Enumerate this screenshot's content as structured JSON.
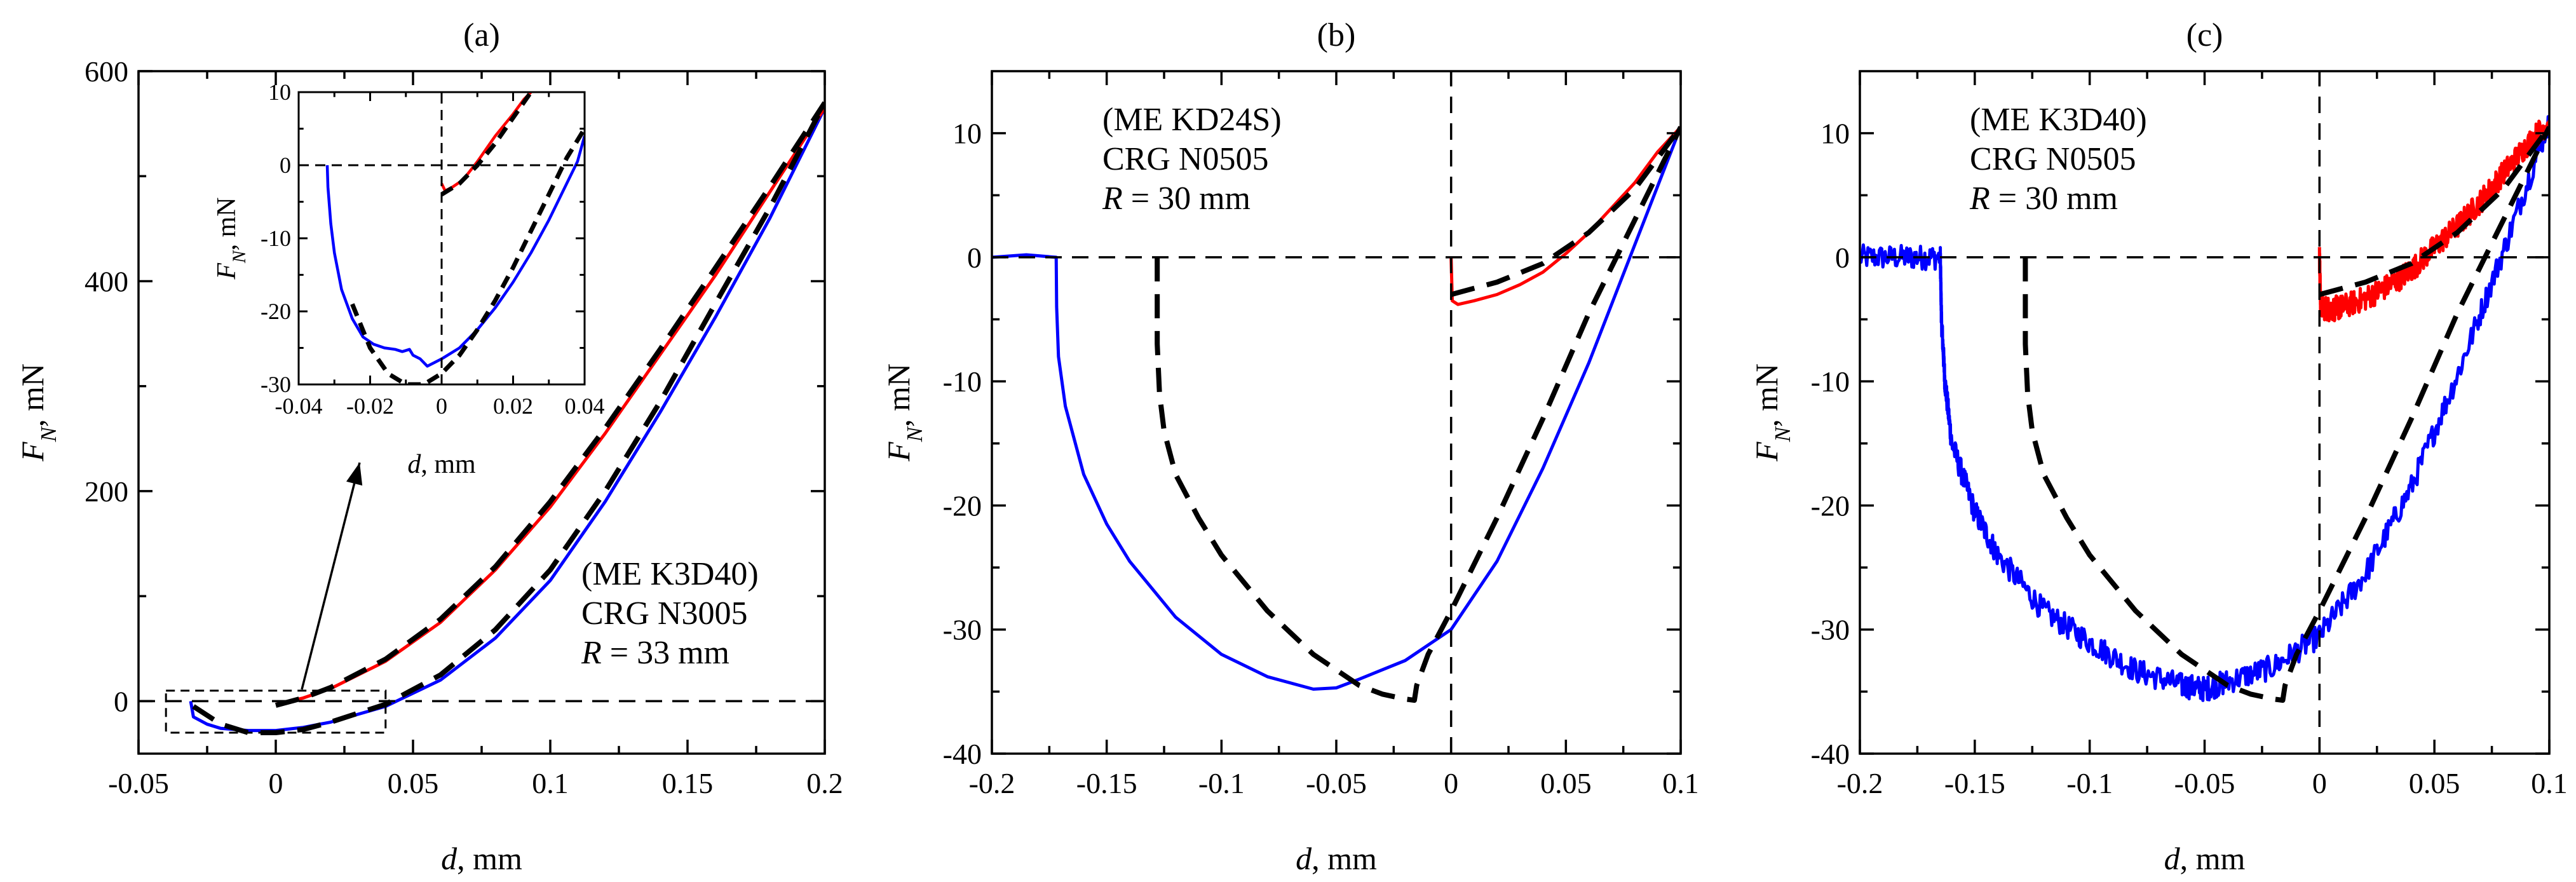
{
  "colors": {
    "loading": "#0000ff",
    "unloading": "#ff0000",
    "model": "#000000"
  },
  "chart_data": [
    {
      "id": "a",
      "type": "line",
      "panel_label": "(a)",
      "xlabel": "d, mm",
      "ylabel": "F_N, mN",
      "xlim": [
        -0.05,
        0.2
      ],
      "ylim": [
        -50,
        600
      ],
      "xticks": [
        -0.05,
        0,
        0.05,
        0.1,
        0.15,
        0.2
      ],
      "xtick_labels": [
        "-0.05",
        "0",
        "0.05",
        "0.1",
        "0.15",
        "0.2"
      ],
      "yticks": [
        0,
        200,
        400,
        600
      ],
      "ytick_labels": [
        "0",
        "200",
        "400",
        "600"
      ],
      "annotation": [
        "(ME K3D40)",
        "CRG N3005",
        "R = 33 mm"
      ],
      "series": [
        {
          "name": "loading (measured)",
          "color": "blue",
          "dash": false,
          "x": [
            -0.031,
            -0.03,
            -0.025,
            -0.02,
            -0.01,
            0,
            0.01,
            0.02,
            0.04,
            0.06,
            0.08,
            0.1,
            0.12,
            0.14,
            0.16,
            0.18,
            0.2
          ],
          "y": [
            0,
            -15,
            -22,
            -26,
            -28,
            -28,
            -25,
            -20,
            -5,
            20,
            60,
            115,
            190,
            275,
            365,
            460,
            565
          ]
        },
        {
          "name": "unloading (measured)",
          "color": "red",
          "dash": false,
          "x": [
            0,
            0.01,
            0.02,
            0.04,
            0.06,
            0.08,
            0.1,
            0.12,
            0.14,
            0.16,
            0.18,
            0.2
          ],
          "y": [
            -3,
            3,
            12,
            38,
            75,
            125,
            185,
            255,
            330,
            405,
            485,
            565
          ]
        },
        {
          "name": "model loading",
          "color": "black",
          "dash": true,
          "x": [
            -0.03,
            -0.02,
            -0.01,
            0,
            0.01,
            0.02,
            0.04,
            0.06,
            0.08,
            0.1,
            0.12,
            0.14,
            0.16,
            0.18,
            0.2
          ],
          "y": [
            -5,
            -22,
            -30,
            -30,
            -27,
            -20,
            -3,
            25,
            68,
            125,
            200,
            285,
            378,
            470,
            570
          ]
        },
        {
          "name": "model unloading",
          "color": "black",
          "dash": true,
          "x": [
            0,
            0.01,
            0.02,
            0.04,
            0.06,
            0.08,
            0.1,
            0.12,
            0.14,
            0.16,
            0.18,
            0.2
          ],
          "y": [
            -4,
            3,
            13,
            40,
            78,
            128,
            190,
            260,
            335,
            412,
            490,
            570
          ]
        },
        {
          "name": "zero line",
          "color": "black",
          "dash": true,
          "thin": true,
          "x": [
            -0.05,
            0.2
          ],
          "y": [
            0,
            0
          ]
        }
      ],
      "inset": {
        "xlabel": "d, mm",
        "ylabel": "F_N, mN",
        "xlim": [
          -0.04,
          0.04
        ],
        "ylim": [
          -30,
          10
        ],
        "xticks": [
          -0.04,
          -0.02,
          0,
          0.02,
          0.04
        ],
        "xtick_labels": [
          "-0.04",
          "-0.02",
          "0",
          "0.02",
          "0.04"
        ],
        "yticks": [
          -30,
          -20,
          -10,
          0,
          10
        ],
        "ytick_labels": [
          "-30",
          "-20",
          "-10",
          "0",
          "10"
        ],
        "series": [
          {
            "name": "loading (measured)",
            "color": "blue",
            "dash": false,
            "x": [
              -0.032,
              -0.0318,
              -0.031,
              -0.03,
              -0.028,
              -0.025,
              -0.022,
              -0.019,
              -0.016,
              -0.013,
              -0.011,
              -0.009,
              -0.008,
              -0.006,
              -0.004,
              -0.002,
              0,
              0.005,
              0.01,
              0.015,
              0.02,
              0.025,
              0.03,
              0.035,
              0.038,
              0.04
            ],
            "y": [
              0,
              -3,
              -8,
              -12,
              -17,
              -21,
              -23.5,
              -24.5,
              -25,
              -25.2,
              -25.5,
              -25.2,
              -26,
              -26.5,
              -27.5,
              -27,
              -26.5,
              -25,
              -22.5,
              -19.5,
              -16,
              -12,
              -7.5,
              -2.5,
              0.5,
              4
            ]
          },
          {
            "name": "unloading (measured)",
            "color": "red",
            "dash": false,
            "x": [
              0,
              0.001,
              0.003,
              0.006,
              0.01,
              0.015,
              0.02,
              0.023,
              0.025
            ],
            "y": [
              -2.5,
              -3.5,
              -3,
              -2,
              0.5,
              4,
              7,
              9,
              10
            ]
          },
          {
            "name": "model loading",
            "color": "black",
            "dash": true,
            "x": [
              -0.025,
              -0.02,
              -0.015,
              -0.01,
              -0.005,
              0,
              0.005,
              0.01,
              0.015,
              0.02,
              0.025,
              0.03,
              0.035,
              0.04
            ],
            "y": [
              -19,
              -25,
              -28.5,
              -30,
              -30,
              -28.5,
              -26,
              -22.5,
              -18.5,
              -14,
              -9,
              -4,
              1,
              5
            ]
          },
          {
            "name": "model unloading",
            "color": "black",
            "dash": true,
            "x": [
              0,
              0.005,
              0.01,
              0.015,
              0.02,
              0.025
            ],
            "y": [
              -4,
              -2.5,
              0,
              3,
              6.5,
              10
            ]
          },
          {
            "name": "zero line",
            "color": "black",
            "dash": true,
            "thin": true,
            "x": [
              -0.04,
              0.04
            ],
            "y": [
              0,
              0
            ]
          },
          {
            "name": "x=0 line",
            "color": "black",
            "dash": true,
            "thin": true,
            "x": [
              0,
              0
            ],
            "y": [
              -30,
              10
            ]
          }
        ]
      }
    },
    {
      "id": "b",
      "type": "line",
      "panel_label": "(b)",
      "xlabel": "d, mm",
      "ylabel": "F_N, mN",
      "xlim": [
        -0.2,
        0.1
      ],
      "ylim": [
        -40,
        15
      ],
      "xticks": [
        -0.2,
        -0.15,
        -0.1,
        -0.05,
        0,
        0.05,
        0.1
      ],
      "xtick_labels": [
        "-0.2",
        "-0.15",
        "-0.1",
        "-0.05",
        "0",
        "0.05",
        "0.1"
      ],
      "yticks": [
        -40,
        -30,
        -20,
        -10,
        0,
        10
      ],
      "ytick_labels": [
        "-40",
        "-30",
        "-20",
        "-10",
        "0",
        "10"
      ],
      "annotation": [
        "(ME KD24S)",
        "CRG N0505",
        "R = 30 mm"
      ],
      "series": [
        {
          "name": "loading (measured)",
          "color": "blue",
          "dash": false,
          "x": [
            -0.2,
            -0.185,
            -0.172,
            -0.1718,
            -0.171,
            -0.168,
            -0.16,
            -0.15,
            -0.14,
            -0.12,
            -0.1,
            -0.08,
            -0.06,
            -0.05,
            -0.04,
            -0.02,
            0,
            0.02,
            0.04,
            0.06,
            0.08,
            0.1
          ],
          "y": [
            0,
            0.2,
            0,
            -4,
            -8,
            -12,
            -17.5,
            -21.5,
            -24.5,
            -29,
            -32,
            -33.8,
            -34.8,
            -34.7,
            -34,
            -32.5,
            -30,
            -24.5,
            -17,
            -8.5,
            1,
            10.5
          ]
        },
        {
          "name": "unloading (measured)",
          "color": "red",
          "dash": false,
          "x": [
            0,
            0.0005,
            0.003,
            0.01,
            0.02,
            0.03,
            0.04,
            0.05,
            0.06,
            0.07,
            0.08,
            0.09,
            0.1
          ],
          "y": [
            0,
            -3.5,
            -3.8,
            -3.5,
            -3,
            -2.2,
            -1.2,
            0.3,
            2,
            4,
            6,
            8.5,
            10.5
          ]
        },
        {
          "name": "model loading",
          "color": "black",
          "dash": true,
          "x": [
            -0.128,
            -0.128,
            -0.127,
            -0.125,
            -0.12,
            -0.11,
            -0.1,
            -0.08,
            -0.06,
            -0.04,
            -0.03,
            -0.02,
            -0.016,
            -0.015,
            -0.01,
            0,
            0.02,
            0.04,
            0.06,
            0.08,
            0.1
          ],
          "y": [
            0,
            -7,
            -11,
            -14,
            -17.5,
            -21,
            -24,
            -28.5,
            -32,
            -34.5,
            -35.2,
            -35.6,
            -35.7,
            -34.5,
            -32,
            -28.5,
            -21,
            -13,
            -4.5,
            3,
            10.5
          ]
        },
        {
          "name": "model unloading",
          "color": "black",
          "dash": true,
          "x": [
            0,
            0.01,
            0.02,
            0.04,
            0.06,
            0.08,
            0.1
          ],
          "y": [
            -3,
            -2.5,
            -2,
            -0.5,
            2,
            5.5,
            10.5
          ]
        },
        {
          "name": "zero line",
          "color": "black",
          "dash": true,
          "thin": true,
          "x": [
            -0.2,
            0.1
          ],
          "y": [
            0,
            0
          ]
        },
        {
          "name": "x=0 line",
          "color": "black",
          "dash": true,
          "thin": true,
          "x": [
            0,
            0
          ],
          "y": [
            -40,
            15
          ]
        }
      ]
    },
    {
      "id": "c",
      "type": "line",
      "panel_label": "(c)",
      "xlabel": "d, mm",
      "ylabel": "F_N, mN",
      "xlim": [
        -0.2,
        0.1
      ],
      "ylim": [
        -40,
        15
      ],
      "xticks": [
        -0.2,
        -0.15,
        -0.1,
        -0.05,
        0,
        0.05,
        0.1
      ],
      "xtick_labels": [
        "-0.2",
        "-0.15",
        "-0.1",
        "-0.05",
        "0",
        "0.05",
        "0.1"
      ],
      "yticks": [
        -40,
        -30,
        -20,
        -10,
        0,
        10
      ],
      "ytick_labels": [
        "-40",
        "-30",
        "-20",
        "-10",
        "0",
        "10"
      ],
      "annotation": [
        "(ME K3D40)",
        "CRG N0505",
        "R = 30 mm"
      ],
      "series": [
        {
          "name": "loading (measured)",
          "color": "blue",
          "dash": false,
          "noise": 1.0,
          "x": [
            -0.2,
            -0.18,
            -0.165,
            -0.1645,
            -0.163,
            -0.16,
            -0.15,
            -0.14,
            -0.12,
            -0.1,
            -0.08,
            -0.06,
            -0.05,
            -0.04,
            -0.02,
            0,
            0.02,
            0.04,
            0.06,
            0.08,
            0.1
          ],
          "y": [
            0,
            0,
            0,
            -5,
            -10,
            -15,
            -20.5,
            -24,
            -28.5,
            -31,
            -33.3,
            -34.5,
            -34.8,
            -34.2,
            -33,
            -30.5,
            -25.5,
            -18.5,
            -9.5,
            0.5,
            11
          ]
        },
        {
          "name": "unloading (measured)",
          "color": "red",
          "dash": false,
          "noise": 1.0,
          "x": [
            0,
            0.0005,
            0.005,
            0.01,
            0.02,
            0.03,
            0.04,
            0.05,
            0.06,
            0.07,
            0.08,
            0.09,
            0.1
          ],
          "y": [
            0,
            -4,
            -4.2,
            -4,
            -3.3,
            -2.3,
            -1,
            0.8,
            2.5,
            4.5,
            6.8,
            9,
            11
          ]
        },
        {
          "name": "model loading",
          "color": "black",
          "dash": true,
          "x": [
            -0.128,
            -0.128,
            -0.127,
            -0.125,
            -0.12,
            -0.11,
            -0.1,
            -0.08,
            -0.06,
            -0.04,
            -0.03,
            -0.02,
            -0.016,
            -0.015,
            -0.01,
            0,
            0.02,
            0.04,
            0.06,
            0.08,
            0.1
          ],
          "y": [
            0,
            -7,
            -11,
            -14,
            -17.5,
            -21,
            -24,
            -28.5,
            -32,
            -34.5,
            -35.2,
            -35.6,
            -35.7,
            -34.5,
            -32,
            -28.5,
            -21,
            -13,
            -4.5,
            3,
            10.5
          ]
        },
        {
          "name": "model unloading",
          "color": "black",
          "dash": true,
          "x": [
            0,
            0.01,
            0.02,
            0.04,
            0.06,
            0.08,
            0.1
          ],
          "y": [
            -3,
            -2.5,
            -2,
            -0.5,
            2,
            5.5,
            10.5
          ]
        },
        {
          "name": "zero line",
          "color": "black",
          "dash": true,
          "thin": true,
          "x": [
            -0.2,
            0.1
          ],
          "y": [
            0,
            0
          ]
        },
        {
          "name": "x=0 line",
          "color": "black",
          "dash": true,
          "thin": true,
          "x": [
            0,
            0
          ],
          "y": [
            -40,
            15
          ]
        }
      ]
    }
  ]
}
